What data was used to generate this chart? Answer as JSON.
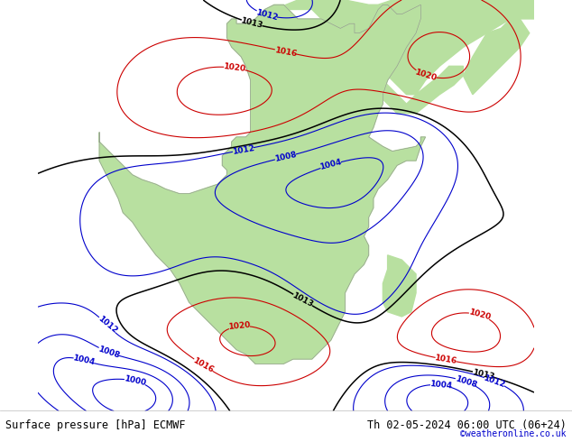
{
  "title_left": "Surface pressure [hPa] ECMWF",
  "title_right": "Th 02-05-2024 06:00 UTC (06+24)",
  "copyright": "©weatheronline.co.uk",
  "bg_color": "#c8d8e8",
  "land_color": "#b8e0a0",
  "border_color": "#909090",
  "isobar_black_color": "#000000",
  "isobar_blue_color": "#0000cc",
  "isobar_red_color": "#cc0000",
  "label_fontsize": 6.5,
  "footer_fontsize": 8.5,
  "copyright_color": "#0000cc",
  "lon_min": -30,
  "lon_max": 75,
  "lat_min": -45,
  "lat_max": 42
}
